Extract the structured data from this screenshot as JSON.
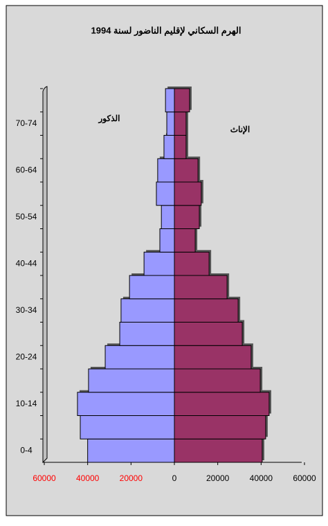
{
  "chart_data": {
    "type": "pyramid",
    "title": "الهرم السكاني لإقليم الناضور  لسنة 1994",
    "categories": [
      "0-4",
      null,
      "10-14",
      null,
      "20-24",
      null,
      "30-34",
      null,
      "40-44",
      null,
      "50-54",
      null,
      "60-64",
      null,
      "70-74",
      null
    ],
    "series": [
      {
        "name": "الذكور",
        "color": "#9999ff",
        "values": [
          -40000,
          -43400,
          -44700,
          -39600,
          -31900,
          -25200,
          -24600,
          -20700,
          -14000,
          -6700,
          -6000,
          -8300,
          -7700,
          -4800,
          -3500,
          -4100
        ]
      },
      {
        "name": "الإناث",
        "color": "#993366",
        "values": [
          40500,
          42100,
          43700,
          39600,
          35400,
          31300,
          29400,
          24300,
          16000,
          9600,
          11500,
          12400,
          10900,
          5400,
          5400,
          7000
        ]
      }
    ],
    "xlim": [
      -60000,
      60000
    ],
    "xticks": [
      {
        "value": -60000,
        "label": "60000"
      },
      {
        "value": -40000,
        "label": "40000"
      },
      {
        "value": -20000,
        "label": "20000"
      },
      0,
      20000,
      40000,
      60000
    ],
    "negative_tick_color": "#ff0000"
  }
}
